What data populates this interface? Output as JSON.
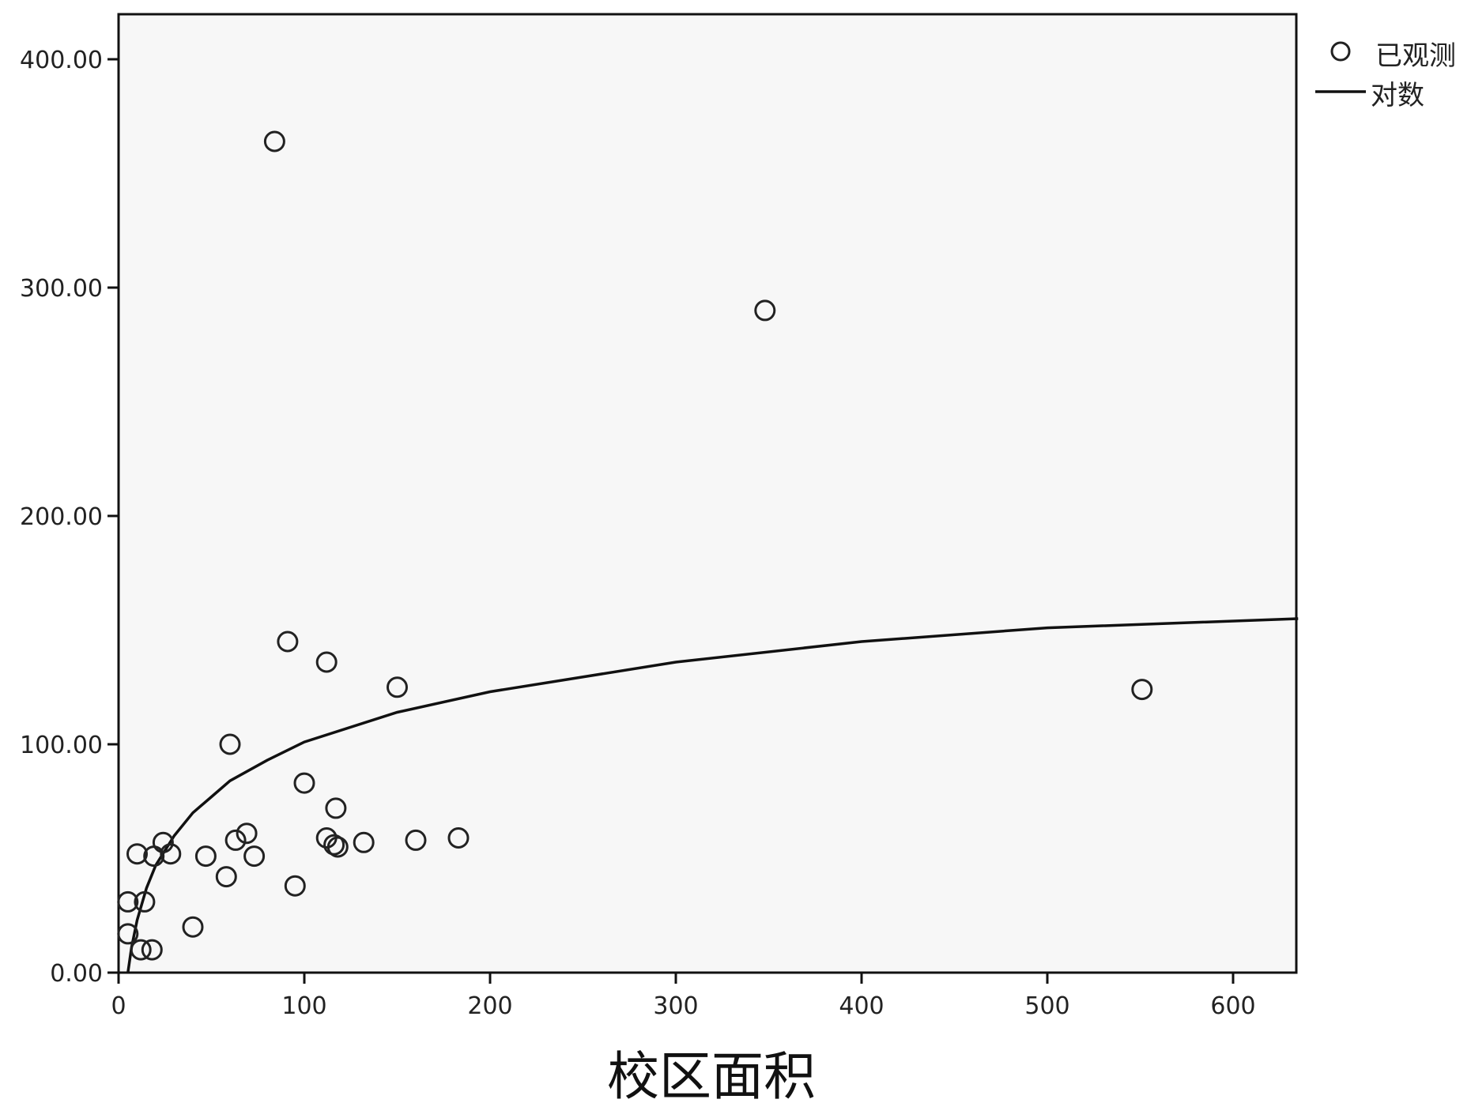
{
  "chart_data": {
    "type": "scatter",
    "title": "",
    "xlabel": "校区面积",
    "ylabel": "",
    "xlim": [
      0,
      635
    ],
    "ylim": [
      0,
      420
    ],
    "x_ticks": [
      {
        "value": 0,
        "label": "0"
      },
      {
        "value": 100,
        "label": "100"
      },
      {
        "value": 200,
        "label": "200"
      },
      {
        "value": 300,
        "label": "300"
      },
      {
        "value": 400,
        "label": "400"
      },
      {
        "value": 500,
        "label": "500"
      },
      {
        "value": 600,
        "label": "600"
      }
    ],
    "y_ticks": [
      {
        "value": 0,
        "label": "0.00"
      },
      {
        "value": 100,
        "label": "100.00"
      },
      {
        "value": 200,
        "label": "200.00"
      },
      {
        "value": 300,
        "label": "300.00"
      },
      {
        "value": 400,
        "label": "400.00"
      }
    ],
    "grid": false,
    "legend": {
      "placement": "right-top",
      "entries": [
        {
          "label": "已观测",
          "marker": "circle"
        },
        {
          "label": "对数",
          "marker": "line"
        }
      ]
    },
    "colors": {
      "plot_bg": "#f7f7f7",
      "marker": "#222222",
      "line": "#111111"
    },
    "series": [
      {
        "name": "已观测",
        "type": "scatter",
        "points": [
          [
            84,
            364
          ],
          [
            348,
            290
          ],
          [
            91,
            145
          ],
          [
            112,
            136
          ],
          [
            150,
            125
          ],
          [
            551,
            124
          ],
          [
            60,
            100
          ],
          [
            100,
            83
          ],
          [
            117,
            72
          ],
          [
            69,
            61
          ],
          [
            63,
            58
          ],
          [
            112,
            59
          ],
          [
            116,
            56
          ],
          [
            118,
            55
          ],
          [
            132,
            57
          ],
          [
            160,
            58
          ],
          [
            183,
            59
          ],
          [
            10,
            52
          ],
          [
            19,
            51
          ],
          [
            24,
            57
          ],
          [
            28,
            52
          ],
          [
            47,
            51
          ],
          [
            73,
            51
          ],
          [
            58,
            42
          ],
          [
            95,
            38
          ],
          [
            5,
            31
          ],
          [
            14,
            31
          ],
          [
            5,
            17
          ],
          [
            40,
            20
          ],
          [
            12,
            10
          ],
          [
            18,
            10
          ]
        ]
      },
      {
        "name": "对数",
        "type": "line",
        "fit": "logarithmic",
        "points": [
          [
            5,
            0
          ],
          [
            7,
            11
          ],
          [
            10,
            23
          ],
          [
            15,
            37
          ],
          [
            20,
            47
          ],
          [
            30,
            60
          ],
          [
            40,
            70
          ],
          [
            50,
            77
          ],
          [
            60,
            84
          ],
          [
            80,
            93
          ],
          [
            100,
            101
          ],
          [
            150,
            114
          ],
          [
            200,
            123
          ],
          [
            300,
            136
          ],
          [
            400,
            145
          ],
          [
            500,
            151
          ],
          [
            635,
            155
          ]
        ]
      }
    ]
  }
}
